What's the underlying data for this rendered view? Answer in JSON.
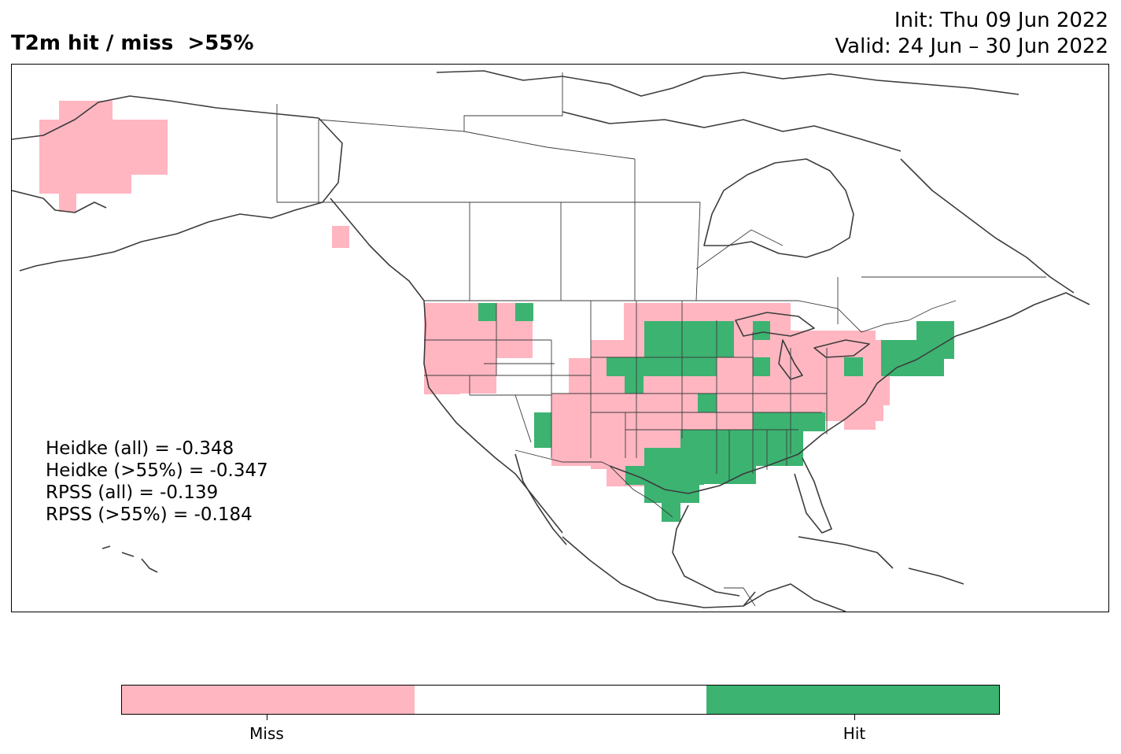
{
  "title": "T2m hit / miss  >55%",
  "init": "Init: Thu 09 Jun 2022",
  "valid": "Valid: 24 Jun – 30 Jun 2022",
  "stats": [
    "Heidke (all) = -0.348",
    "Heidke (>55%) = -0.347",
    "RPSS (all) = -0.139",
    "RPSS (>55%) = -0.184"
  ],
  "colorbar": {
    "labels": [
      "Miss",
      "Hit"
    ],
    "colors": {
      "miss": "#ffb6c1",
      "neutral": "#ffffff",
      "hit": "#3cb371"
    }
  },
  "map": {
    "region": "North America",
    "outline_color": "#3c3c3c"
  }
}
